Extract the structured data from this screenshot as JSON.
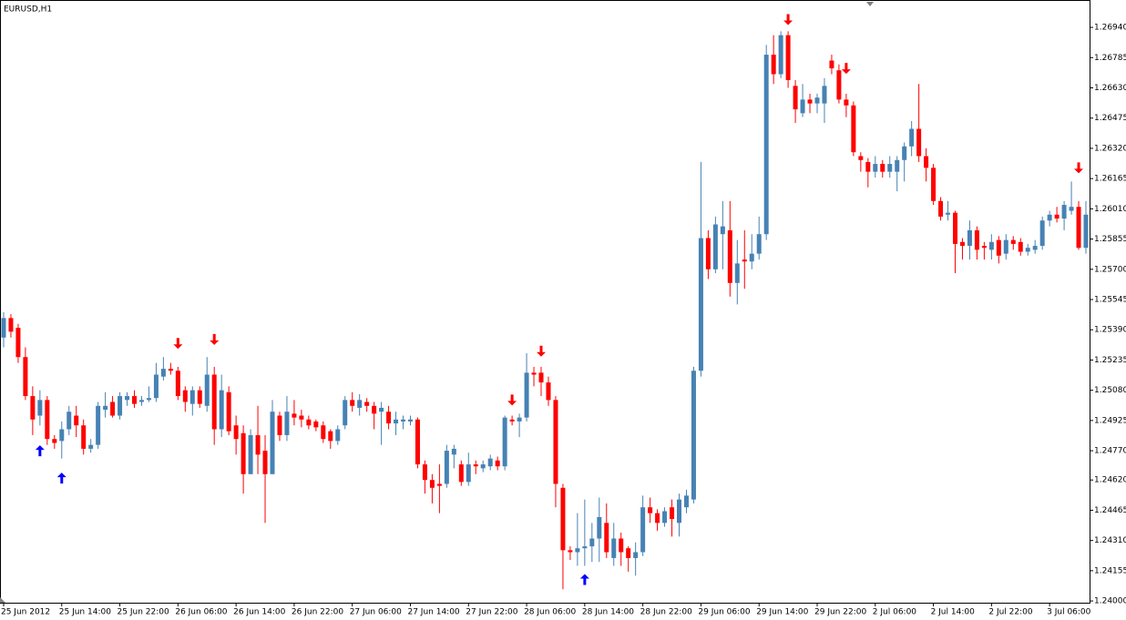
{
  "chart_data": {
    "type": "candlestick",
    "title": "EURUSD,H1",
    "up_color": "#4682b4",
    "down_color": "#ff0000",
    "categories": [
      "25 Jun 2012",
      null,
      null,
      null,
      null,
      null,
      null,
      null,
      "25 Jun 14:00",
      null,
      null,
      null,
      null,
      null,
      null,
      null,
      "25 Jun 22:00",
      null,
      null,
      null,
      null,
      null,
      null,
      null,
      "26 Jun 06:00",
      null,
      null,
      null,
      null,
      null,
      null,
      null,
      "26 Jun 14:00",
      null,
      null,
      null,
      null,
      null,
      null,
      null,
      "26 Jun 22:00",
      null,
      null,
      null,
      null,
      null,
      null,
      null,
      "27 Jun 06:00",
      null,
      null,
      null,
      null,
      null,
      null,
      null,
      "27 Jun 14:00",
      null,
      null,
      null,
      null,
      null,
      null,
      null,
      "27 Jun 22:00",
      null,
      null,
      null,
      null,
      null,
      null,
      null,
      "28 Jun 06:00",
      null,
      null,
      null,
      null,
      null,
      null,
      null,
      "28 Jun 14:00",
      null,
      null,
      null,
      null,
      null,
      null,
      null,
      "28 Jun 22:00",
      null,
      null,
      null,
      null,
      null,
      null,
      null,
      "29 Jun 06:00",
      null,
      null,
      null,
      null,
      null,
      null,
      null,
      "29 Jun 14:00",
      null,
      null,
      null,
      null,
      null,
      null,
      null,
      "29 Jun 22:00",
      null,
      null,
      null,
      null,
      null,
      null,
      null,
      "2 Jul 06:00",
      null,
      null,
      null,
      null,
      null,
      null,
      null,
      "2 Jul 14:00",
      null,
      null,
      null,
      null,
      null,
      null,
      null,
      "2 Jul 22:00",
      null,
      null,
      null,
      null,
      null,
      null,
      null,
      "3 Jul 06:00",
      null,
      null,
      null,
      null,
      null
    ],
    "open": [
      1.2535,
      1.2545,
      1.254,
      1.2525,
      1.2505,
      1.2495,
      1.2503,
      1.2483,
      1.2482,
      1.2488,
      1.2495,
      1.249,
      1.2478,
      1.248,
      1.2498,
      1.2502,
      1.2495,
      1.2503,
      1.2505,
      1.2502,
      1.2503,
      1.2504,
      1.2515,
      1.2519,
      1.2518,
      1.2508,
      1.2501,
      1.2508,
      1.25,
      1.2516,
      1.2488,
      1.2507,
      1.249,
      1.2486,
      1.2465,
      1.2485,
      1.2477,
      1.2465,
      1.2495,
      1.2485,
      1.2496,
      1.2495,
      1.2493,
      1.2492,
      1.249,
      1.2487,
      1.2482,
      1.249,
      1.2503,
      1.2499,
      1.2502,
      1.25,
      1.2497,
      1.2497,
      1.2491,
      1.2492,
      1.2492,
      1.2493,
      1.247,
      1.2462,
      1.246,
      1.246,
      1.2475,
      1.247,
      1.2461,
      1.247,
      1.2468,
      1.2469,
      1.2472,
      1.2469,
      1.2493,
      1.2492,
      1.2494,
      1.2517,
      1.2517,
      1.2512,
      1.2503,
      1.2458,
      1.2426,
      1.2425,
      1.2427,
      1.2428,
      1.2432,
      1.244,
      1.2422,
      1.2432,
      1.2427,
      1.2422,
      1.2425,
      1.2448,
      1.2445,
      1.244,
      1.2448,
      1.244,
      1.2448,
      1.2452,
      1.2518,
      1.2586,
      1.257,
      1.2588,
      1.259,
      1.2563,
      1.2575,
      1.2574,
      1.2578,
      1.2588,
      1.268,
      1.267,
      1.269,
      1.2664,
      1.265,
      1.2657,
      1.2655,
      1.2655,
      1.2677,
      1.2672,
      1.2657,
      1.2654,
      1.2628,
      1.2625,
      1.262,
      1.2624,
      1.262,
      1.262,
      1.2626,
      1.2633,
      1.2642,
      1.2628,
      1.2622,
      1.2605,
      1.2598,
      1.2599,
      1.2584,
      1.2582,
      1.259,
      1.2582,
      1.258,
      1.2585,
      1.2578,
      1.2585,
      1.2584,
      1.2579,
      1.258,
      1.2582,
      1.2595,
      1.2598,
      1.2596,
      1.26,
      1.2602,
      1.2581
    ],
    "high": [
      1.2548,
      1.2547,
      1.2542,
      1.253,
      1.251,
      1.2508,
      1.2505,
      1.2485,
      1.2492,
      1.25,
      1.25,
      1.2493,
      1.2483,
      1.2502,
      1.2507,
      1.2505,
      1.2507,
      1.2507,
      1.2508,
      1.2505,
      1.251,
      1.2522,
      1.2525,
      1.2522,
      1.252,
      1.251,
      1.251,
      1.251,
      1.2525,
      1.252,
      1.2516,
      1.251,
      1.2495,
      1.249,
      1.2488,
      1.25,
      1.2485,
      1.2503,
      1.2497,
      1.2505,
      1.2503,
      1.2498,
      1.2495,
      1.2493,
      1.2492,
      1.2488,
      1.249,
      1.2505,
      1.2507,
      1.2506,
      1.2504,
      1.2502,
      1.2502,
      1.25,
      1.2497,
      1.2495,
      1.2495,
      1.2494,
      1.2472,
      1.2465,
      1.247,
      1.248,
      1.248,
      1.2472,
      1.2476,
      1.2472,
      1.2472,
      1.2475,
      1.2474,
      1.2495,
      1.2495,
      1.2496,
      1.2527,
      1.252,
      1.252,
      1.2515,
      1.2505,
      1.246,
      1.2428,
      1.2445,
      1.2452,
      1.244,
      1.2453,
      1.245,
      1.244,
      1.2435,
      1.2428,
      1.243,
      1.2454,
      1.2453,
      1.2447,
      1.2448,
      1.2452,
      1.2455,
      1.2457,
      1.252,
      1.2625,
      1.259,
      1.2597,
      1.2605,
      1.2605,
      1.2585,
      1.259,
      1.2588,
      1.2597,
      1.2685,
      1.269,
      1.2692,
      1.2692,
      1.2667,
      1.2665,
      1.266,
      1.266,
      1.2668,
      1.268,
      1.2675,
      1.266,
      1.2656,
      1.263,
      1.2627,
      1.2628,
      1.2626,
      1.2628,
      1.2628,
      1.2635,
      1.2646,
      1.2665,
      1.2632,
      1.2624,
      1.2607,
      1.2605,
      1.26,
      1.2586,
      1.2595,
      1.2592,
      1.2584,
      1.2588,
      1.2587,
      1.2588,
      1.2587,
      1.2586,
      1.2583,
      1.2585,
      1.2597,
      1.26,
      1.2602,
      1.2605,
      1.2615,
      1.2605,
      1.2605
    ],
    "low": [
      1.253,
      1.2535,
      1.2522,
      1.2503,
      1.2485,
      1.249,
      1.248,
      1.2478,
      1.2473,
      1.2485,
      1.2484,
      1.2475,
      1.2476,
      1.2478,
      1.2494,
      1.2494,
      1.2493,
      1.25,
      1.2499,
      1.25,
      1.2502,
      1.2502,
      1.2513,
      1.2516,
      1.2503,
      1.2497,
      1.2495,
      1.2499,
      1.2497,
      1.248,
      1.2484,
      1.2485,
      1.2475,
      1.2455,
      1.2465,
      1.2465,
      1.244,
      1.2465,
      1.2482,
      1.2482,
      1.249,
      1.2489,
      1.2488,
      1.2487,
      1.2481,
      1.2478,
      1.248,
      1.2488,
      1.2497,
      1.2495,
      1.2497,
      1.2488,
      1.248,
      1.2488,
      1.2485,
      1.2488,
      1.249,
      1.2468,
      1.2455,
      1.245,
      1.2445,
      1.2458,
      1.2468,
      1.2459,
      1.2459,
      1.2465,
      1.2466,
      1.2467,
      1.2467,
      1.2467,
      1.249,
      1.2484,
      1.2492,
      1.251,
      1.2505,
      1.25,
      1.2448,
      1.2406,
      1.2421,
      1.2418,
      1.2418,
      1.242,
      1.242,
      1.2422,
      1.2418,
      1.2418,
      1.2415,
      1.2413,
      1.2423,
      1.244,
      1.2436,
      1.2438,
      1.2433,
      1.2433,
      1.2445,
      1.245,
      1.2515,
      1.2565,
      1.2568,
      1.257,
      1.2556,
      1.2552,
      1.256,
      1.257,
      1.2575,
      1.2585,
      1.2665,
      1.2668,
      1.2663,
      1.2645,
      1.2648,
      1.265,
      1.265,
      1.2645,
      1.267,
      1.2655,
      1.2648,
      1.2628,
      1.262,
      1.2612,
      1.2617,
      1.2617,
      1.2617,
      1.261,
      1.2615,
      1.2628,
      1.2625,
      1.2615,
      1.2603,
      1.2595,
      1.2595,
      1.2568,
      1.2575,
      1.2575,
      1.2575,
      1.2575,
      1.2575,
      1.2573,
      1.2575,
      1.258,
      1.2577,
      1.2577,
      1.2578,
      1.258,
      1.2592,
      1.2594,
      1.259,
      1.2598,
      1.258,
      1.2578
    ],
    "close": [
      1.2545,
      1.2538,
      1.2525,
      1.2505,
      1.2493,
      1.2503,
      1.2483,
      1.2481,
      1.2488,
      1.2497,
      1.249,
      1.2478,
      1.248,
      1.25,
      1.25,
      1.2495,
      1.2505,
      1.2505,
      1.2501,
      1.2503,
      1.2504,
      1.2516,
      1.2519,
      1.2518,
      1.2505,
      1.2502,
      1.2508,
      1.2501,
      1.2516,
      1.2488,
      1.2508,
      1.2487,
      1.2483,
      1.2465,
      1.2485,
      1.2475,
      1.2465,
      1.2497,
      1.2485,
      1.2497,
      1.2494,
      1.2493,
      1.249,
      1.2489,
      1.2483,
      1.2482,
      1.2488,
      1.2503,
      1.25,
      1.2503,
      1.25,
      1.2496,
      1.2499,
      1.2491,
      1.2493,
      1.2493,
      1.2493,
      1.247,
      1.2462,
      1.2458,
      1.2459,
      1.2477,
      1.2478,
      1.2461,
      1.247,
      1.2469,
      1.247,
      1.2473,
      1.2469,
      1.2494,
      1.2492,
      1.2494,
      1.2517,
      1.2516,
      1.2512,
      1.2503,
      1.246,
      1.2426,
      1.2425,
      1.2427,
      1.2428,
      1.2432,
      1.2443,
      1.2425,
      1.2432,
      1.2425,
      1.2422,
      1.2425,
      1.2448,
      1.2445,
      1.244,
      1.2446,
      1.2442,
      1.2452,
      1.2454,
      1.2518,
      1.2586,
      1.257,
      1.2593,
      1.2592,
      1.2563,
      1.2573,
      1.2574,
      1.2578,
      1.2588,
      1.268,
      1.267,
      1.269,
      1.2667,
      1.2652,
      1.2657,
      1.2655,
      1.2658,
      1.2664,
      1.2673,
      1.2657,
      1.2654,
      1.263,
      1.2626,
      1.262,
      1.2624,
      1.262,
      1.2624,
      1.2626,
      1.2633,
      1.2642,
      1.2628,
      1.2622,
      1.2605,
      1.2597,
      1.2599,
      1.2583,
      1.2582,
      1.259,
      1.258,
      1.2581,
      1.2584,
      1.2577,
      1.2585,
      1.2583,
      1.2579,
      1.2581,
      1.2582,
      1.2595,
      1.2598,
      1.2596,
      1.2603,
      1.2602,
      1.2581,
      1.2598
    ],
    "up_arrows": {
      "color": "#0000ff",
      "x": [
        5,
        8,
        80
      ],
      "y": [
        1.2477,
        1.2463,
        1.2411
      ]
    },
    "down_arrows": {
      "color": "#ff0000",
      "x": [
        24,
        29,
        70,
        74,
        108,
        116,
        148
      ],
      "y": [
        1.2532,
        1.2534,
        1.2503,
        1.2528,
        1.2698,
        1.2673,
        1.2622
      ]
    },
    "ylim": [
      1.23991,
      1.27071
    ],
    "yticks": [
      {
        "value": 1.2694,
        "label": "1.26940"
      },
      {
        "value": 1.26785,
        "label": "1.26785"
      },
      {
        "value": 1.2663,
        "label": "1.26630"
      },
      {
        "value": 1.26475,
        "label": "1.26475"
      },
      {
        "value": 1.2632,
        "label": "1.26320"
      },
      {
        "value": 1.26165,
        "label": "1.26165"
      },
      {
        "value": 1.2601,
        "label": "1.26010"
      },
      {
        "value": 1.25855,
        "label": "1.25855"
      },
      {
        "value": 1.257,
        "label": "1.25700"
      },
      {
        "value": 1.25545,
        "label": "1.25545"
      },
      {
        "value": 1.2539,
        "label": "1.25390"
      },
      {
        "value": 1.25235,
        "label": "1.25235"
      },
      {
        "value": 1.2508,
        "label": "1.25080"
      },
      {
        "value": 1.24925,
        "label": "1.24925"
      },
      {
        "value": 1.2477,
        "label": "1.24770"
      },
      {
        "value": 1.2462,
        "label": "1.24620"
      },
      {
        "value": 1.24465,
        "label": "1.24465"
      },
      {
        "value": 1.2431,
        "label": "1.24310"
      },
      {
        "value": 1.24155,
        "label": "1.24155"
      },
      {
        "value": 1.24,
        "label": "1.24000"
      }
    ]
  }
}
